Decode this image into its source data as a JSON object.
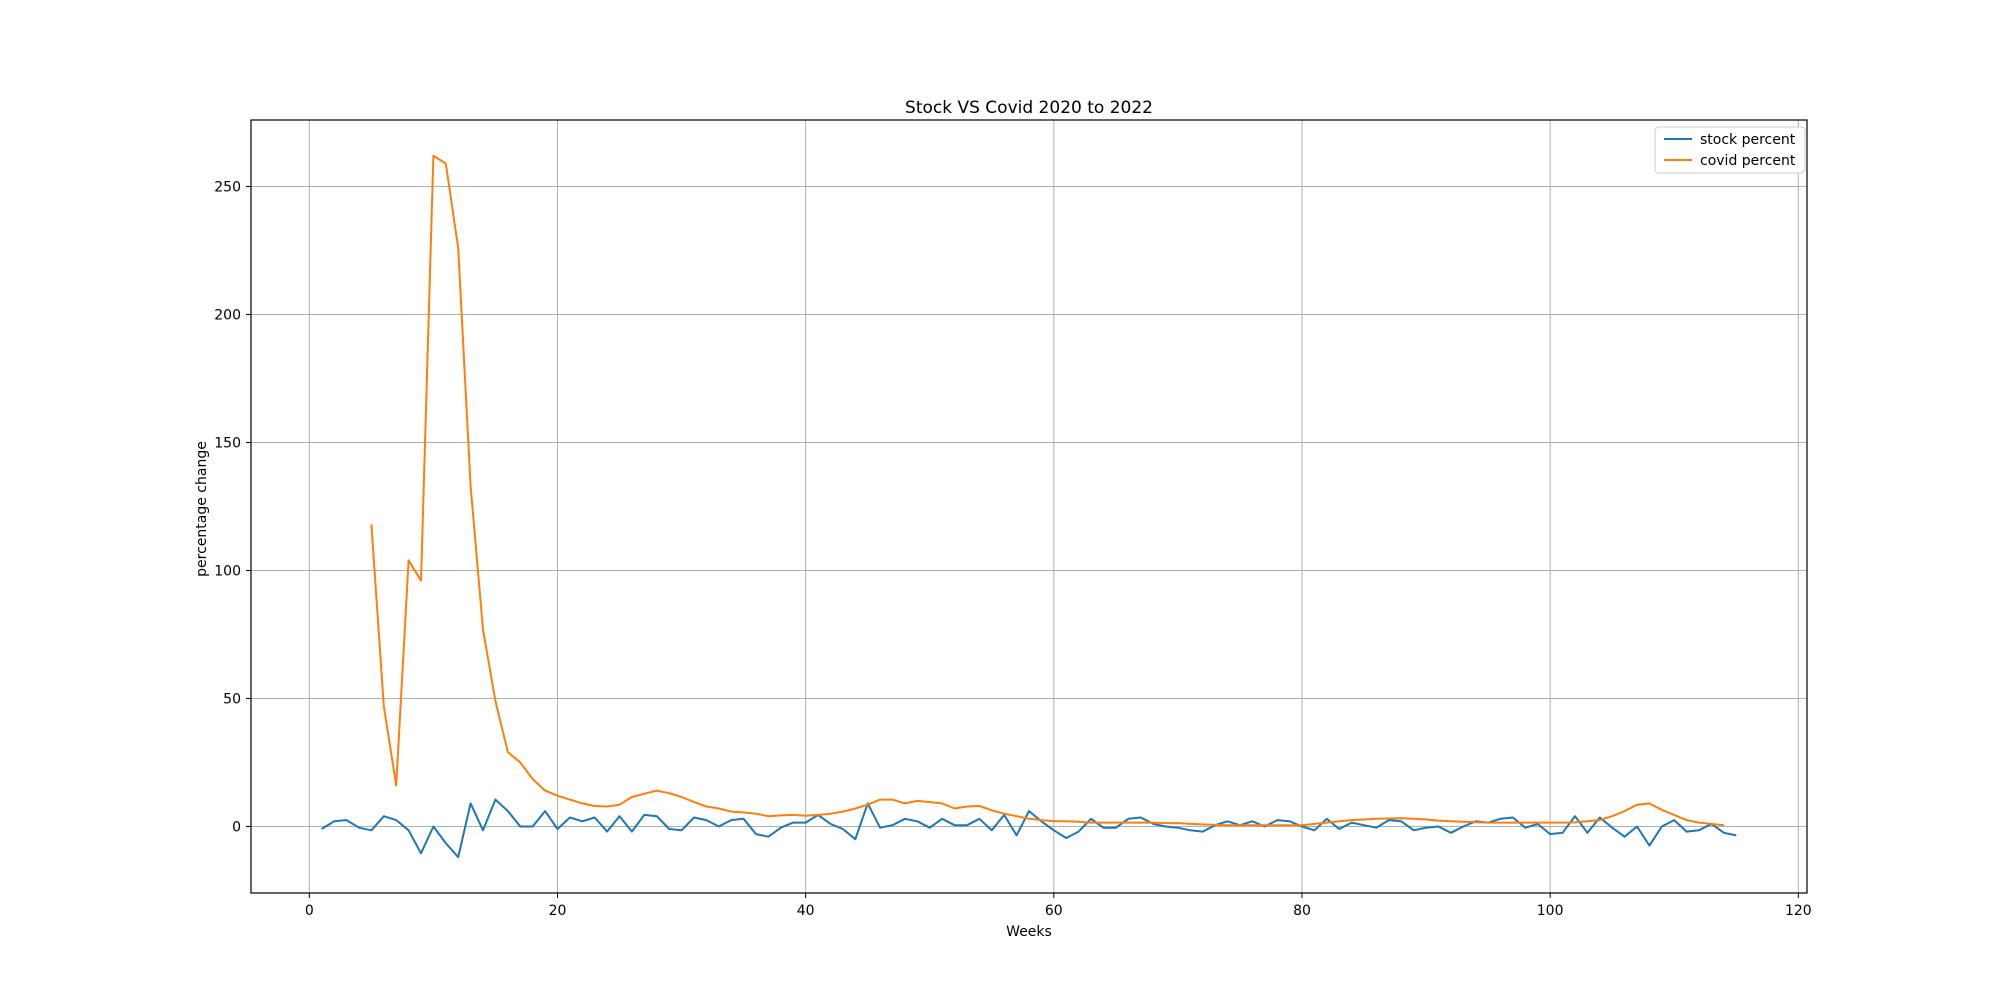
{
  "chart_data": {
    "type": "line",
    "title": "Stock VS Covid 2020 to 2022",
    "xlabel": "Weeks",
    "ylabel": "percentage change",
    "xlim": [
      -4.7,
      120.7
    ],
    "ylim": [
      -26,
      276
    ],
    "xticks": [
      0,
      20,
      40,
      60,
      80,
      100,
      120
    ],
    "yticks": [
      0,
      50,
      100,
      150,
      200,
      250
    ],
    "grid": true,
    "legend_position": "top-right",
    "series": [
      {
        "name": "stock percent",
        "color": "#1f77b4",
        "x": [
          1,
          2,
          3,
          4,
          5,
          6,
          7,
          8,
          9,
          10,
          11,
          12,
          13,
          14,
          15,
          16,
          17,
          18,
          19,
          20,
          21,
          22,
          23,
          24,
          25,
          26,
          27,
          28,
          29,
          30,
          31,
          32,
          33,
          34,
          35,
          36,
          37,
          38,
          39,
          40,
          41,
          42,
          43,
          44,
          45,
          46,
          47,
          48,
          49,
          50,
          51,
          52,
          53,
          54,
          55,
          56,
          57,
          58,
          59,
          60,
          61,
          62,
          63,
          64,
          65,
          66,
          67,
          68,
          69,
          70,
          71,
          72,
          73,
          74,
          75,
          76,
          77,
          78,
          79,
          80,
          81,
          82,
          83,
          84,
          85,
          86,
          87,
          88,
          89,
          90,
          91,
          92,
          93,
          94,
          95,
          96,
          97,
          98,
          99,
          100,
          101,
          102,
          103,
          104,
          105,
          106,
          107,
          108,
          109,
          110,
          111,
          112,
          113,
          114,
          115
        ],
        "y": [
          -1,
          2,
          2.5,
          -0.5,
          -1.5,
          4,
          2.5,
          -1.5,
          -10.5,
          0,
          -6.5,
          -12,
          9,
          -1.5,
          10.5,
          6,
          0,
          0,
          6,
          -1,
          3.5,
          2,
          3.5,
          -2,
          4,
          -2,
          4.5,
          4,
          -1,
          -1.5,
          3.5,
          2.5,
          0,
          2.5,
          3,
          -3,
          -4,
          -0.5,
          1.5,
          1.5,
          4.5,
          1,
          -1,
          -5,
          9,
          -0.5,
          0.5,
          3,
          2,
          -0.5,
          3,
          0.5,
          0.5,
          3,
          -1.5,
          4.5,
          -3.5,
          6,
          2,
          -1.5,
          -4.5,
          -2,
          3,
          -0.5,
          -0.5,
          3,
          3.5,
          1,
          0,
          -0.5,
          -1.5,
          -2,
          0.5,
          2,
          0.5,
          2,
          0,
          2.5,
          2,
          0,
          -1.5,
          3,
          -1,
          1.5,
          0.5,
          -0.5,
          2.5,
          2,
          -1.5,
          -0.5,
          0,
          -2.5,
          0,
          2,
          1.5,
          3,
          3.5,
          -0.5,
          1,
          -3,
          -2.5,
          4,
          -2.5,
          3.5,
          -0.5,
          -4,
          0,
          -7.5,
          0,
          2.5,
          -2,
          -1.5,
          1,
          -2.5,
          -3.5
        ]
      },
      {
        "name": "covid percent",
        "color": "#ff7f0e",
        "x": [
          5,
          6,
          7,
          8,
          9,
          10,
          11,
          12,
          13,
          14,
          15,
          16,
          17,
          18,
          19,
          20,
          21,
          22,
          23,
          24,
          25,
          26,
          27,
          28,
          29,
          30,
          31,
          32,
          33,
          34,
          35,
          36,
          37,
          38,
          39,
          40,
          41,
          42,
          43,
          44,
          45,
          46,
          47,
          48,
          49,
          50,
          51,
          52,
          53,
          54,
          55,
          56,
          57,
          58,
          59,
          60,
          61,
          62,
          63,
          64,
          65,
          66,
          67,
          68,
          69,
          70,
          71,
          72,
          73,
          74,
          75,
          76,
          77,
          78,
          79,
          80,
          81,
          82,
          83,
          84,
          85,
          86,
          87,
          88,
          89,
          90,
          91,
          92,
          93,
          94,
          95,
          96,
          97,
          98,
          99,
          100,
          101,
          102,
          103,
          104,
          105,
          106,
          107,
          108,
          109,
          110,
          111,
          112,
          113,
          114
        ],
        "y": [
          118,
          47,
          16,
          104,
          96,
          262,
          259,
          226,
          133,
          77,
          49,
          29,
          25,
          18.5,
          14,
          12,
          10.5,
          9,
          8,
          7.8,
          8.5,
          11.5,
          12.8,
          14,
          13,
          11.5,
          9.5,
          7.8,
          7,
          5.8,
          5.5,
          5,
          4,
          4.3,
          4.5,
          4.2,
          4.5,
          5,
          5.8,
          7,
          8.5,
          10.5,
          10.5,
          9,
          10,
          9.5,
          9,
          7,
          7.8,
          8,
          6.3,
          5,
          4,
          3,
          2.5,
          2,
          2,
          1.8,
          1.5,
          1.5,
          1.5,
          1.5,
          1.5,
          1.5,
          1.3,
          1.3,
          1,
          0.8,
          0.6,
          0.5,
          0.5,
          0.5,
          0.5,
          0.5,
          0.5,
          0.5,
          1,
          1.5,
          2,
          2.5,
          2.7,
          3,
          3.1,
          3.2,
          3,
          2.7,
          2.3,
          2,
          1.8,
          1.7,
          1.5,
          1.5,
          1.5,
          1.5,
          1.5,
          1.5,
          1.5,
          1.6,
          2,
          2.5,
          4,
          6,
          8.5,
          9,
          6.5,
          4.5,
          2.5,
          1.5,
          1,
          0.5
        ]
      }
    ]
  }
}
